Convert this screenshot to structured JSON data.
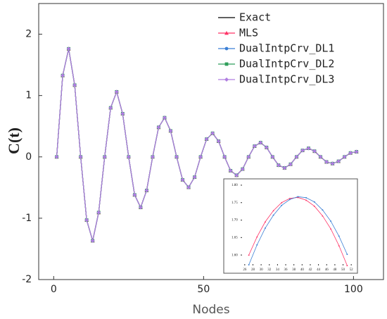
{
  "chart_data": [
    {
      "type": "line",
      "ylabel": "C(t)",
      "xlabel": "Nodes",
      "xlim": [
        -5,
        110
      ],
      "ylim": [
        -2,
        2.5
      ],
      "xticks": [
        0,
        50,
        100
      ],
      "yticks": [
        -2,
        -1,
        0,
        1,
        2
      ],
      "legend": "upper right",
      "x": [
        1,
        3,
        5,
        7,
        9,
        11,
        13,
        15,
        17,
        19,
        21,
        23,
        25,
        27,
        29,
        31,
        33,
        35,
        37,
        39,
        41,
        43,
        45,
        47,
        49,
        51,
        53,
        55,
        57,
        59,
        61,
        63,
        65,
        67,
        69,
        71,
        73,
        75,
        77,
        79,
        81,
        83,
        85,
        87,
        89,
        91,
        93,
        95,
        97,
        99,
        101
      ],
      "series": [
        {
          "name": "Exact",
          "color": "#000000",
          "marker": "none",
          "values": [
            0,
            1.327,
            1.762,
            1.17,
            0,
            -1.03,
            -1.367,
            -0.907,
            0,
            0.8,
            1.061,
            0.704,
            0,
            -0.62,
            -0.824,
            -0.547,
            0,
            0.482,
            0.639,
            0.424,
            0,
            -0.374,
            -0.496,
            -0.33,
            0,
            0.29,
            0.385,
            0.256,
            0,
            -0.225,
            -0.299,
            -0.199,
            0,
            0.175,
            0.232,
            0.154,
            0,
            -0.136,
            -0.18,
            -0.12,
            0,
            0.105,
            0.14,
            0.093,
            0,
            -0.082,
            -0.109,
            -0.072,
            0,
            0.064,
            0.084
          ]
        },
        {
          "name": "MLS",
          "color": "#ff3366",
          "marker": "triangle",
          "values": [
            0,
            1.327,
            1.762,
            1.17,
            0,
            -1.03,
            -1.367,
            -0.907,
            0,
            0.8,
            1.061,
            0.704,
            0,
            -0.62,
            -0.824,
            -0.547,
            0,
            0.482,
            0.639,
            0.424,
            0,
            -0.374,
            -0.496,
            -0.33,
            0,
            0.29,
            0.385,
            0.256,
            0,
            -0.225,
            -0.299,
            -0.199,
            0,
            0.175,
            0.232,
            0.154,
            0,
            -0.136,
            -0.18,
            -0.12,
            0,
            0.105,
            0.14,
            0.093,
            0,
            -0.082,
            -0.109,
            -0.072,
            0,
            0.064,
            0.084
          ]
        },
        {
          "name": "DualIntpCrv_DL1",
          "color": "#3a7fd5",
          "marker": "circle",
          "values": [
            0,
            1.327,
            1.762,
            1.17,
            0,
            -1.03,
            -1.367,
            -0.907,
            0,
            0.8,
            1.061,
            0.704,
            0,
            -0.62,
            -0.824,
            -0.547,
            0,
            0.482,
            0.639,
            0.424,
            0,
            -0.374,
            -0.496,
            -0.33,
            0,
            0.29,
            0.385,
            0.256,
            0,
            -0.225,
            -0.299,
            -0.199,
            0,
            0.175,
            0.232,
            0.154,
            0,
            -0.136,
            -0.18,
            -0.12,
            0,
            0.105,
            0.14,
            0.093,
            0,
            -0.082,
            -0.109,
            -0.072,
            0,
            0.064,
            0.084
          ]
        },
        {
          "name": "DualIntpCrv_DL2",
          "color": "#2e9e5a",
          "marker": "square",
          "values": [
            0,
            1.327,
            1.762,
            1.17,
            0,
            -1.03,
            -1.367,
            -0.907,
            0,
            0.8,
            1.061,
            0.704,
            0,
            -0.62,
            -0.824,
            -0.547,
            0,
            0.482,
            0.639,
            0.424,
            0,
            -0.374,
            -0.496,
            -0.33,
            0,
            0.29,
            0.385,
            0.256,
            0,
            -0.225,
            -0.299,
            -0.199,
            0,
            0.175,
            0.232,
            0.154,
            0,
            -0.136,
            -0.18,
            -0.12,
            0,
            0.105,
            0.14,
            0.093,
            0,
            -0.082,
            -0.109,
            -0.072,
            0,
            0.064,
            0.084
          ]
        },
        {
          "name": "DualIntpCrv_DL3",
          "color": "#b07ee0",
          "marker": "diamond",
          "values": [
            0,
            1.327,
            1.762,
            1.17,
            0,
            -1.03,
            -1.367,
            -0.907,
            0,
            0.8,
            1.061,
            0.704,
            0,
            -0.62,
            -0.824,
            -0.547,
            0,
            0.482,
            0.639,
            0.424,
            0,
            -0.374,
            -0.496,
            -0.33,
            0,
            0.29,
            0.385,
            0.256,
            0,
            -0.225,
            -0.299,
            -0.199,
            0,
            0.175,
            0.232,
            0.154,
            0,
            -0.136,
            -0.18,
            -0.12,
            0,
            0.105,
            0.14,
            0.093,
            0,
            -0.082,
            -0.109,
            -0.072,
            0,
            0.064,
            0.084
          ]
        }
      ]
    },
    {
      "type": "line",
      "xlim": [
        25,
        53
      ],
      "ylim": [
        1.57,
        1.81
      ],
      "xticks": [
        26,
        28,
        30,
        32,
        34,
        36,
        38,
        40,
        42,
        44,
        46,
        48,
        50,
        52
      ],
      "yticks": [
        {
          "value": 1.6,
          "label": "1.60"
        },
        {
          "value": 1.65,
          "label": "1.65"
        },
        {
          "value": 1.7,
          "label": "1.70"
        },
        {
          "value": 1.75,
          "label": "1.75"
        },
        {
          "value": 1.8,
          "label": "1.80"
        }
      ],
      "x": [
        27,
        29,
        31,
        33,
        35,
        37,
        39,
        41,
        43,
        45,
        47,
        49,
        51
      ],
      "series": [
        {
          "color": "#ff3366",
          "marker": "triangle",
          "values": [
            1.6,
            1.652,
            1.695,
            1.727,
            1.75,
            1.762,
            1.765,
            1.757,
            1.74,
            1.712,
            1.675,
            1.627,
            1.57
          ]
        },
        {
          "color": "#3a7fd5",
          "marker": "circle",
          "values": [
            1.572,
            1.629,
            1.677,
            1.714,
            1.742,
            1.759,
            1.767,
            1.764,
            1.752,
            1.729,
            1.697,
            1.654,
            1.602
          ]
        }
      ]
    }
  ]
}
